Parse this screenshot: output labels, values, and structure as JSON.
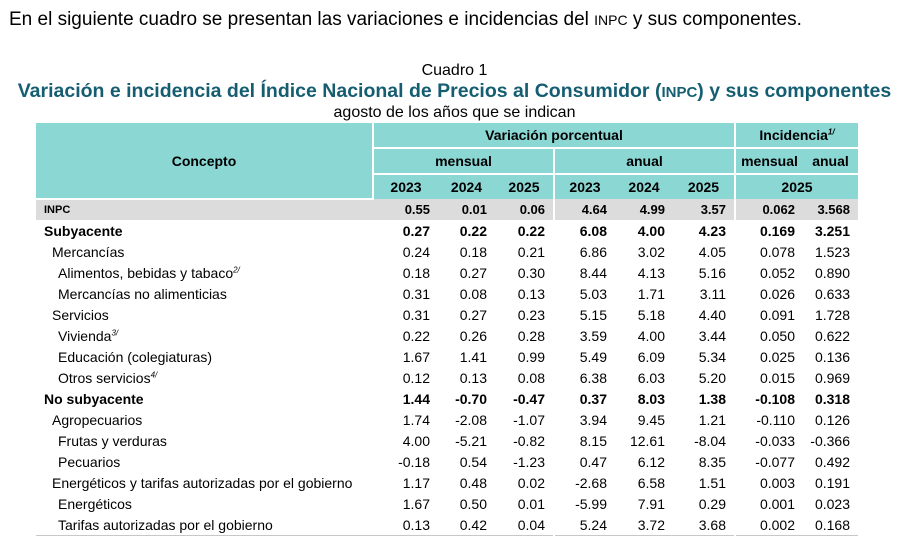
{
  "intro": {
    "before": "En el siguiente cuadro se presentan las variaciones e incidencias del ",
    "abbr": "INPC",
    "after": " y sus componentes."
  },
  "table_header": {
    "cuadro_label": "Cuadro 1",
    "title_before": "Variación e incidencia del Índice Nacional de Precios al Consumidor (",
    "title_abbr": "INPC",
    "title_after": ") y sus componentes",
    "subtitle": "agosto de los años que se indican"
  },
  "columns": {
    "concepto": "Concepto",
    "variacion": "Variación porcentual",
    "incidencia": "Incidencia",
    "incidencia_note": "1/",
    "mensual": "mensual",
    "anual": "anual",
    "inc_mensual": "mensual",
    "inc_anual": "anual",
    "years": [
      "2023",
      "2024",
      "2025",
      "2023",
      "2024",
      "2025"
    ],
    "inc_year": "2025"
  },
  "rows": [
    {
      "label": "INPC",
      "note": "",
      "values": [
        "0.55",
        "0.01",
        "0.06",
        "4.64",
        "4.99",
        "3.57",
        "0.062",
        "3.568"
      ]
    },
    {
      "label": "Subyacente",
      "note": "",
      "values": [
        "0.27",
        "0.22",
        "0.22",
        "6.08",
        "4.00",
        "4.23",
        "0.169",
        "3.251"
      ]
    },
    {
      "label": "Mercancías",
      "note": "",
      "values": [
        "0.24",
        "0.18",
        "0.21",
        "6.86",
        "3.02",
        "4.05",
        "0.078",
        "1.523"
      ]
    },
    {
      "label": "Alimentos, bebidas y tabaco",
      "note": "2/",
      "values": [
        "0.18",
        "0.27",
        "0.30",
        "8.44",
        "4.13",
        "5.16",
        "0.052",
        "0.890"
      ]
    },
    {
      "label": "Mercancías no alimenticias",
      "note": "",
      "values": [
        "0.31",
        "0.08",
        "0.13",
        "5.03",
        "1.71",
        "3.11",
        "0.026",
        "0.633"
      ]
    },
    {
      "label": "Servicios",
      "note": "",
      "values": [
        "0.31",
        "0.27",
        "0.23",
        "5.15",
        "5.18",
        "4.40",
        "0.091",
        "1.728"
      ]
    },
    {
      "label": "Vivienda",
      "note": "3/",
      "values": [
        "0.22",
        "0.26",
        "0.28",
        "3.59",
        "4.00",
        "3.44",
        "0.050",
        "0.622"
      ]
    },
    {
      "label": "Educación (colegiaturas)",
      "note": "",
      "values": [
        "1.67",
        "1.41",
        "0.99",
        "5.49",
        "6.09",
        "5.34",
        "0.025",
        "0.136"
      ]
    },
    {
      "label": "Otros servicios",
      "note": "4/",
      "values": [
        "0.12",
        "0.13",
        "0.08",
        "6.38",
        "6.03",
        "5.20",
        "0.015",
        "0.969"
      ]
    },
    {
      "label": "No subyacente",
      "note": "",
      "values": [
        "1.44",
        "-0.70",
        "-0.47",
        "0.37",
        "8.03",
        "1.38",
        "-0.108",
        "0.318"
      ]
    },
    {
      "label": "Agropecuarios",
      "note": "",
      "values": [
        "1.74",
        "-2.08",
        "-1.07",
        "3.94",
        "9.45",
        "1.21",
        "-0.110",
        "0.126"
      ]
    },
    {
      "label": "Frutas y verduras",
      "note": "",
      "values": [
        "4.00",
        "-5.21",
        "-0.82",
        "8.15",
        "12.61",
        "-8.04",
        "-0.033",
        "-0.366"
      ]
    },
    {
      "label": "Pecuarios",
      "note": "",
      "values": [
        "-0.18",
        "0.54",
        "-1.23",
        "0.47",
        "6.12",
        "8.35",
        "-0.077",
        "0.492"
      ]
    },
    {
      "label": "Energéticos y tarifas autorizadas por el gobierno",
      "note": "",
      "values": [
        "1.17",
        "0.48",
        "0.02",
        "-2.68",
        "6.58",
        "1.51",
        "0.003",
        "0.191"
      ]
    },
    {
      "label": "Energéticos",
      "note": "",
      "values": [
        "1.67",
        "0.50",
        "0.01",
        "-5.99",
        "7.91",
        "0.29",
        "0.001",
        "0.023"
      ]
    },
    {
      "label": "Tarifas autorizadas por el gobierno",
      "note": "",
      "values": [
        "0.13",
        "0.42",
        "0.04",
        "5.24",
        "3.72",
        "3.68",
        "0.002",
        "0.168"
      ]
    }
  ]
}
